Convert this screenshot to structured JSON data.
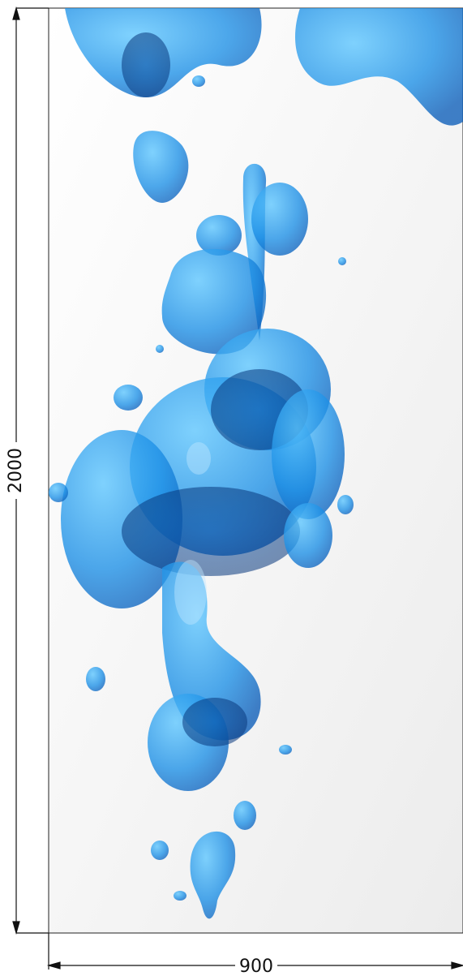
{
  "dimensions": {
    "height": 2000,
    "width": 900
  }
}
